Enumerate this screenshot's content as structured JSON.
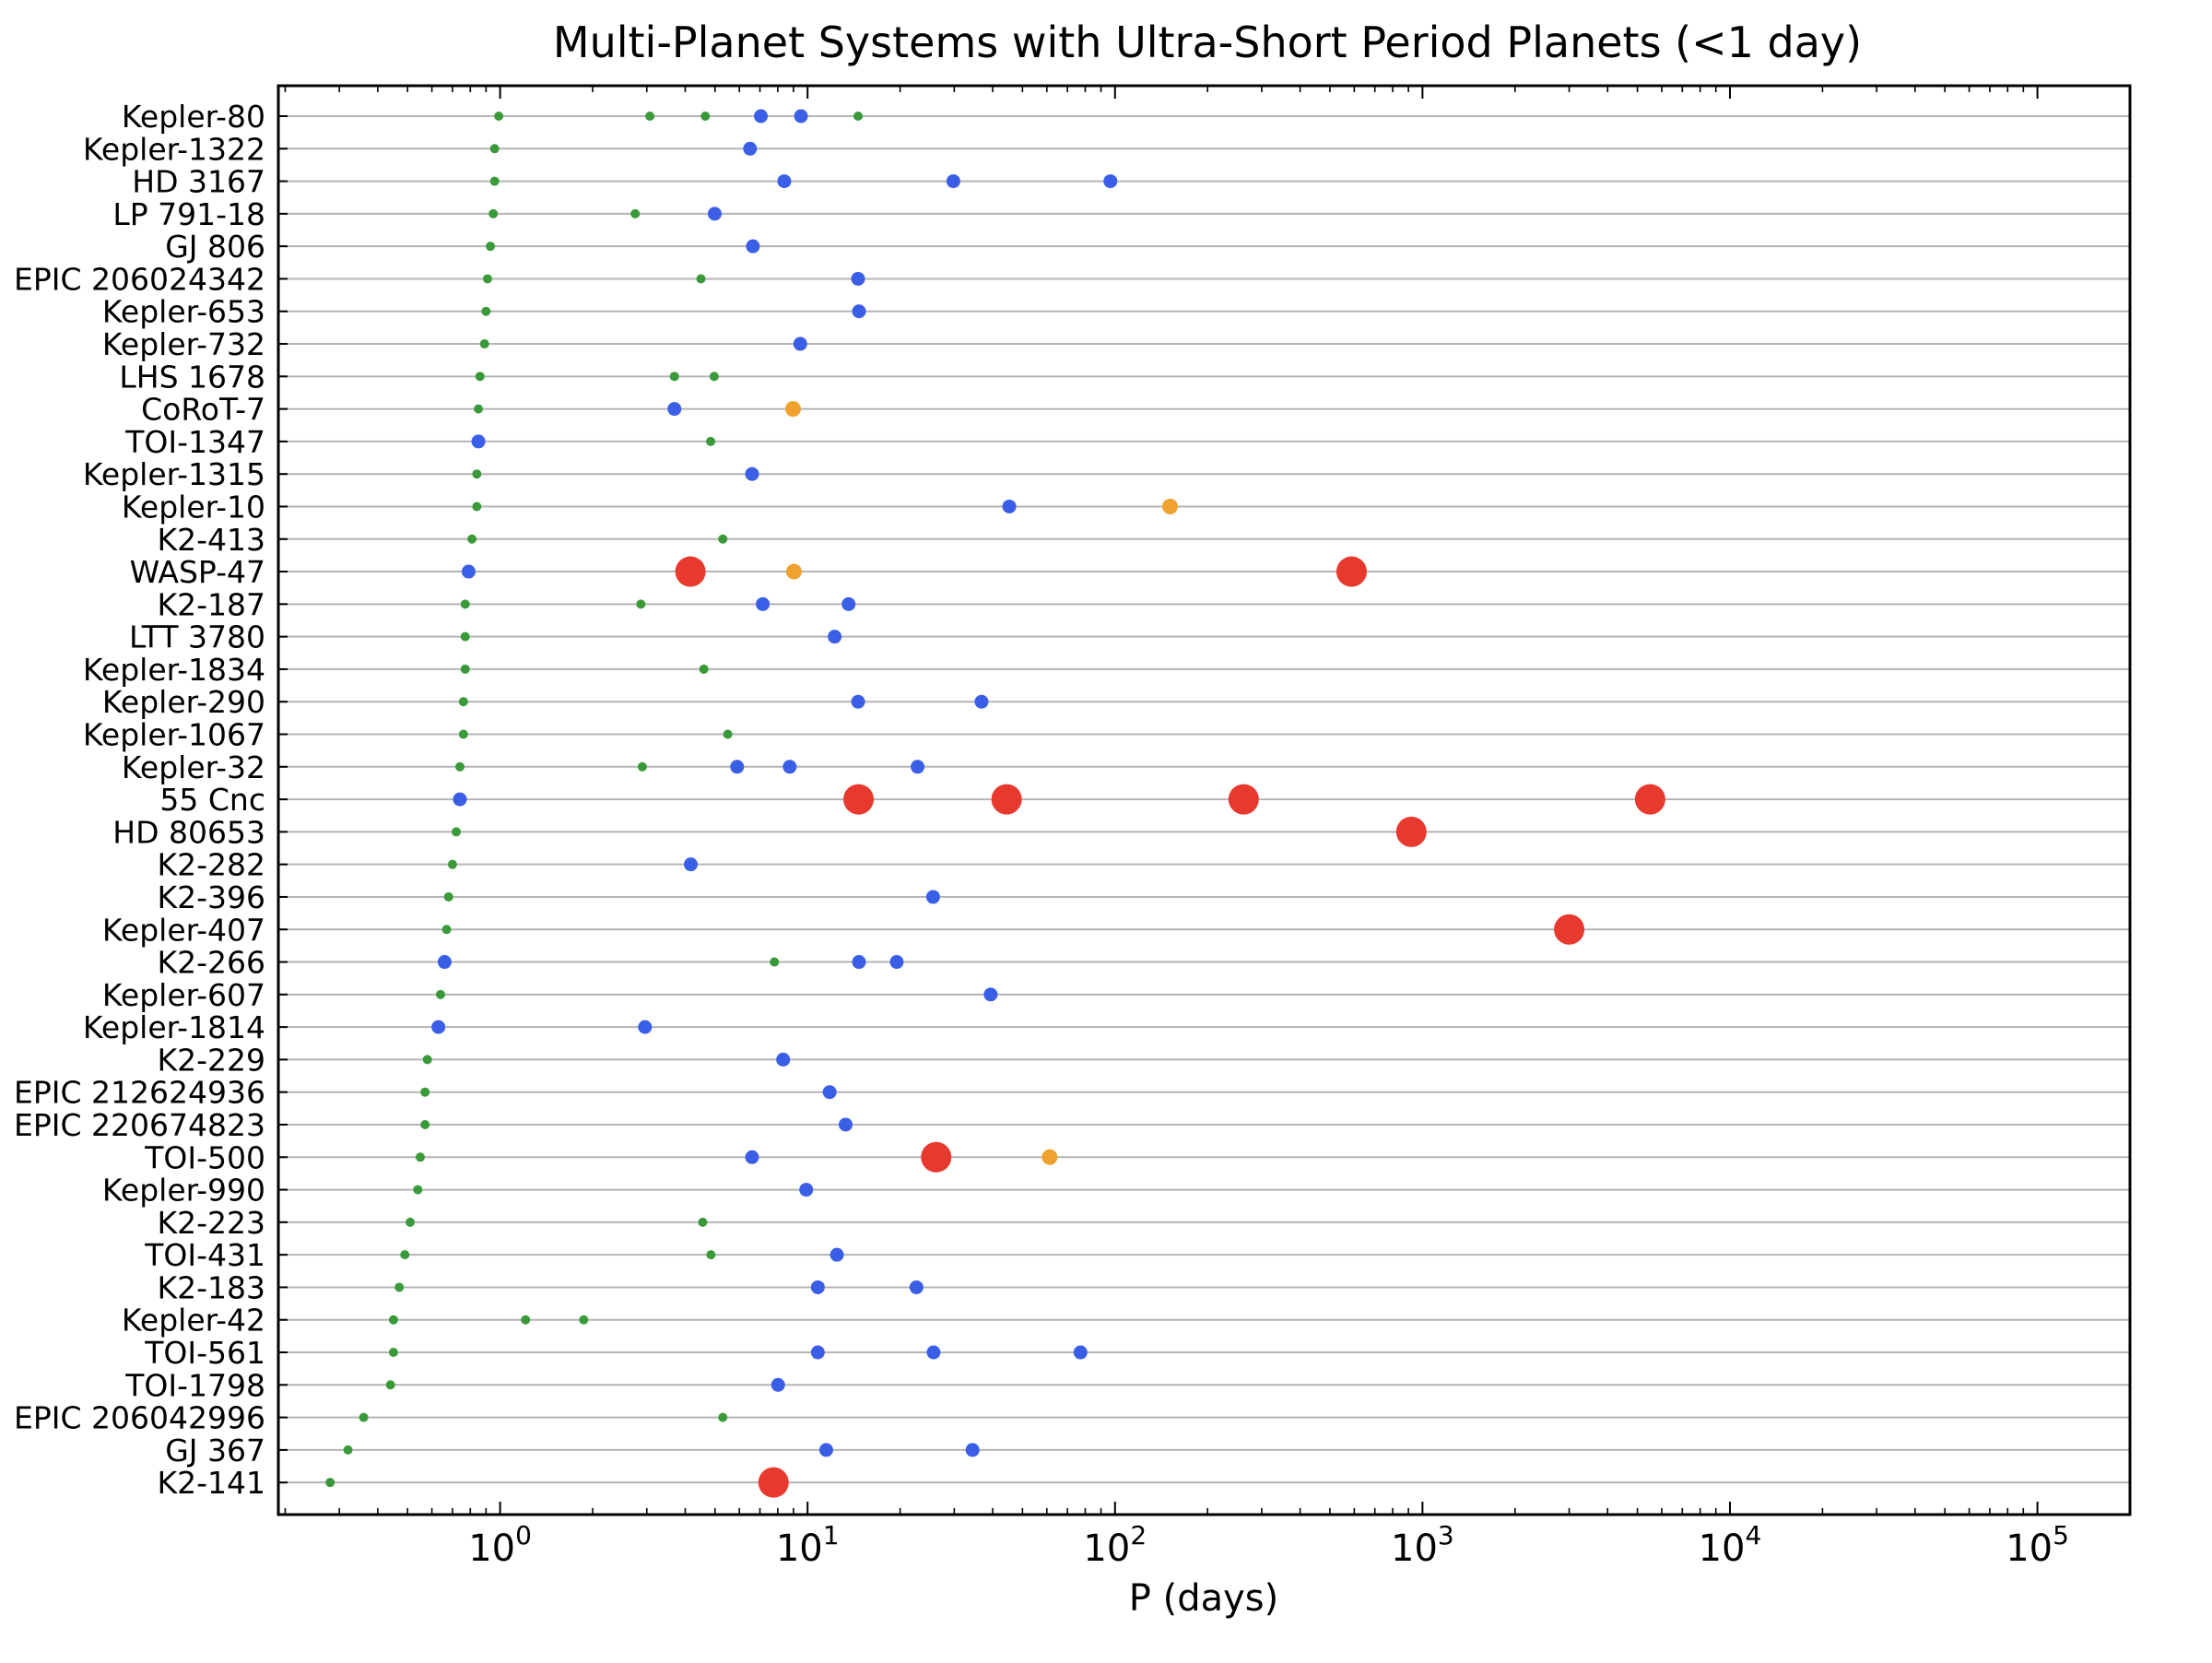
{
  "chart_data": {
    "type": "scatter",
    "title": "Multi-Planet Systems with Ultra-Short Period Planets (<1 day)",
    "xlabel": "P (days)",
    "ylabel": "",
    "xscale": "log",
    "xlim": [
      0.19,
      200000
    ],
    "grid": "horizontal lines at each system",
    "legend": "none",
    "x_ticks": [
      {
        "value": 1,
        "base": "10",
        "exp": "0"
      },
      {
        "value": 10,
        "base": "10",
        "exp": "1"
      },
      {
        "value": 100,
        "base": "10",
        "exp": "2"
      },
      {
        "value": 1000,
        "base": "10",
        "exp": "3"
      },
      {
        "value": 10000,
        "base": "10",
        "exp": "4"
      },
      {
        "value": 100000,
        "base": "10",
        "exp": "5"
      }
    ],
    "colors": {
      "small": "#3a9a3a",
      "medium": "#3a5fe6",
      "large": "#f0a22e",
      "giant": "#e8392e"
    },
    "systems": [
      {
        "name": "Kepler-80",
        "planets": [
          {
            "p": 0.99,
            "c": "small"
          },
          {
            "p": 3.07,
            "c": "small"
          },
          {
            "p": 4.65,
            "c": "small"
          },
          {
            "p": 7.05,
            "c": "medium"
          },
          {
            "p": 9.52,
            "c": "medium"
          },
          {
            "p": 14.6,
            "c": "small"
          }
        ]
      },
      {
        "name": "Kepler-1322",
        "planets": [
          {
            "p": 0.96,
            "c": "small"
          },
          {
            "p": 6.5,
            "c": "medium"
          }
        ]
      },
      {
        "name": "HD 3167",
        "planets": [
          {
            "p": 0.96,
            "c": "small"
          },
          {
            "p": 8.4,
            "c": "medium"
          },
          {
            "p": 29.8,
            "c": "medium"
          },
          {
            "p": 96.6,
            "c": "medium"
          }
        ]
      },
      {
        "name": "LP 791-18",
        "planets": [
          {
            "p": 0.95,
            "c": "small"
          },
          {
            "p": 2.75,
            "c": "small"
          },
          {
            "p": 4.99,
            "c": "medium"
          }
        ]
      },
      {
        "name": "GJ 806",
        "planets": [
          {
            "p": 0.93,
            "c": "small"
          },
          {
            "p": 6.64,
            "c": "medium"
          }
        ]
      },
      {
        "name": "EPIC 206024342",
        "planets": [
          {
            "p": 0.91,
            "c": "small"
          },
          {
            "p": 4.5,
            "c": "small"
          },
          {
            "p": 14.6,
            "c": "medium"
          }
        ]
      },
      {
        "name": "Kepler-653",
        "planets": [
          {
            "p": 0.9,
            "c": "small"
          },
          {
            "p": 14.7,
            "c": "medium"
          }
        ]
      },
      {
        "name": "Kepler-732",
        "planets": [
          {
            "p": 0.89,
            "c": "small"
          },
          {
            "p": 9.47,
            "c": "medium"
          }
        ]
      },
      {
        "name": "LHS 1678",
        "planets": [
          {
            "p": 0.86,
            "c": "small"
          },
          {
            "p": 3.69,
            "c": "small"
          },
          {
            "p": 4.97,
            "c": "small"
          }
        ]
      },
      {
        "name": "CoRoT-7",
        "planets": [
          {
            "p": 0.85,
            "c": "small"
          },
          {
            "p": 3.69,
            "c": "medium"
          },
          {
            "p": 8.97,
            "c": "large"
          }
        ]
      },
      {
        "name": "TOI-1347",
        "planets": [
          {
            "p": 0.85,
            "c": "medium"
          },
          {
            "p": 4.84,
            "c": "small"
          }
        ]
      },
      {
        "name": "Kepler-1315",
        "planets": [
          {
            "p": 0.84,
            "c": "small"
          },
          {
            "p": 6.6,
            "c": "medium"
          }
        ]
      },
      {
        "name": "Kepler-10",
        "planets": [
          {
            "p": 0.84,
            "c": "small"
          },
          {
            "p": 45.3,
            "c": "medium"
          },
          {
            "p": 151,
            "c": "large"
          }
        ]
      },
      {
        "name": "K2-413",
        "planets": [
          {
            "p": 0.81,
            "c": "small"
          },
          {
            "p": 5.3,
            "c": "small"
          }
        ]
      },
      {
        "name": "WASP-47",
        "planets": [
          {
            "p": 0.79,
            "c": "medium"
          },
          {
            "p": 4.16,
            "c": "giant"
          },
          {
            "p": 9.03,
            "c": "large"
          },
          {
            "p": 588,
            "c": "giant"
          }
        ]
      },
      {
        "name": "K2-187",
        "planets": [
          {
            "p": 0.77,
            "c": "small"
          },
          {
            "p": 2.87,
            "c": "small"
          },
          {
            "p": 7.15,
            "c": "medium"
          },
          {
            "p": 13.6,
            "c": "medium"
          }
        ]
      },
      {
        "name": "LTT 3780",
        "planets": [
          {
            "p": 0.77,
            "c": "small"
          },
          {
            "p": 12.25,
            "c": "medium"
          }
        ]
      },
      {
        "name": "Kepler-1834",
        "planets": [
          {
            "p": 0.77,
            "c": "small"
          },
          {
            "p": 4.6,
            "c": "small"
          }
        ]
      },
      {
        "name": "Kepler-290",
        "planets": [
          {
            "p": 0.76,
            "c": "small"
          },
          {
            "p": 14.6,
            "c": "medium"
          },
          {
            "p": 36.8,
            "c": "medium"
          }
        ]
      },
      {
        "name": "Kepler-1067",
        "planets": [
          {
            "p": 0.76,
            "c": "small"
          },
          {
            "p": 5.5,
            "c": "small"
          }
        ]
      },
      {
        "name": "Kepler-32",
        "planets": [
          {
            "p": 0.74,
            "c": "small"
          },
          {
            "p": 2.9,
            "c": "small"
          },
          {
            "p": 5.9,
            "c": "medium"
          },
          {
            "p": 8.75,
            "c": "medium"
          },
          {
            "p": 22.8,
            "c": "medium"
          }
        ]
      },
      {
        "name": "55 Cnc",
        "planets": [
          {
            "p": 0.74,
            "c": "medium"
          },
          {
            "p": 14.65,
            "c": "giant"
          },
          {
            "p": 44.4,
            "c": "giant"
          },
          {
            "p": 262,
            "c": "giant"
          },
          {
            "p": 5500,
            "c": "giant"
          }
        ]
      },
      {
        "name": "HD 80653",
        "planets": [
          {
            "p": 0.72,
            "c": "small"
          },
          {
            "p": 920,
            "c": "giant"
          }
        ]
      },
      {
        "name": "K2-282",
        "planets": [
          {
            "p": 0.7,
            "c": "small"
          },
          {
            "p": 4.17,
            "c": "medium"
          }
        ]
      },
      {
        "name": "K2-396",
        "planets": [
          {
            "p": 0.68,
            "c": "small"
          },
          {
            "p": 25.6,
            "c": "medium"
          }
        ]
      },
      {
        "name": "Kepler-407",
        "planets": [
          {
            "p": 0.67,
            "c": "small"
          },
          {
            "p": 3000,
            "c": "giant"
          }
        ]
      },
      {
        "name": "K2-266",
        "planets": [
          {
            "p": 0.66,
            "c": "medium"
          },
          {
            "p": 7.8,
            "c": "small"
          },
          {
            "p": 14.7,
            "c": "medium"
          },
          {
            "p": 19.5,
            "c": "medium"
          }
        ]
      },
      {
        "name": "Kepler-607",
        "planets": [
          {
            "p": 0.64,
            "c": "small"
          },
          {
            "p": 39.4,
            "c": "medium"
          }
        ]
      },
      {
        "name": "Kepler-1814",
        "planets": [
          {
            "p": 0.63,
            "c": "medium"
          },
          {
            "p": 2.96,
            "c": "medium"
          }
        ]
      },
      {
        "name": "K2-229",
        "planets": [
          {
            "p": 0.58,
            "c": "small"
          },
          {
            "p": 8.33,
            "c": "medium"
          }
        ]
      },
      {
        "name": "EPIC 212624936",
        "planets": [
          {
            "p": 0.57,
            "c": "small"
          },
          {
            "p": 11.8,
            "c": "medium"
          }
        ]
      },
      {
        "name": "EPIC 220674823",
        "planets": [
          {
            "p": 0.57,
            "c": "small"
          },
          {
            "p": 13.3,
            "c": "medium"
          }
        ]
      },
      {
        "name": "TOI-500",
        "planets": [
          {
            "p": 0.55,
            "c": "small"
          },
          {
            "p": 6.6,
            "c": "medium"
          },
          {
            "p": 26.2,
            "c": "giant"
          },
          {
            "p": 61.3,
            "c": "large"
          }
        ]
      },
      {
        "name": "Kepler-990",
        "planets": [
          {
            "p": 0.54,
            "c": "small"
          },
          {
            "p": 9.9,
            "c": "medium"
          }
        ]
      },
      {
        "name": "K2-223",
        "planets": [
          {
            "p": 0.51,
            "c": "small"
          },
          {
            "p": 4.56,
            "c": "small"
          }
        ]
      },
      {
        "name": "TOI-431",
        "planets": [
          {
            "p": 0.49,
            "c": "small"
          },
          {
            "p": 4.85,
            "c": "small"
          },
          {
            "p": 12.46,
            "c": "medium"
          }
        ]
      },
      {
        "name": "K2-183",
        "planets": [
          {
            "p": 0.47,
            "c": "small"
          },
          {
            "p": 10.8,
            "c": "medium"
          },
          {
            "p": 22.6,
            "c": "medium"
          }
        ]
      },
      {
        "name": "Kepler-42",
        "planets": [
          {
            "p": 0.45,
            "c": "small"
          },
          {
            "p": 1.21,
            "c": "small"
          },
          {
            "p": 1.87,
            "c": "small"
          }
        ]
      },
      {
        "name": "TOI-561",
        "planets": [
          {
            "p": 0.45,
            "c": "small"
          },
          {
            "p": 10.8,
            "c": "medium"
          },
          {
            "p": 25.7,
            "c": "medium"
          },
          {
            "p": 77.2,
            "c": "medium"
          }
        ]
      },
      {
        "name": "TOI-1798",
        "planets": [
          {
            "p": 0.44,
            "c": "small"
          },
          {
            "p": 8.02,
            "c": "medium"
          }
        ]
      },
      {
        "name": "EPIC 206042996",
        "planets": [
          {
            "p": 0.36,
            "c": "small"
          },
          {
            "p": 5.3,
            "c": "small"
          }
        ]
      },
      {
        "name": "GJ 367",
        "planets": [
          {
            "p": 0.32,
            "c": "small"
          },
          {
            "p": 11.5,
            "c": "medium"
          },
          {
            "p": 34.4,
            "c": "medium"
          }
        ]
      },
      {
        "name": "K2-141",
        "planets": [
          {
            "p": 0.28,
            "c": "small"
          },
          {
            "p": 7.75,
            "c": "giant"
          }
        ]
      }
    ]
  }
}
